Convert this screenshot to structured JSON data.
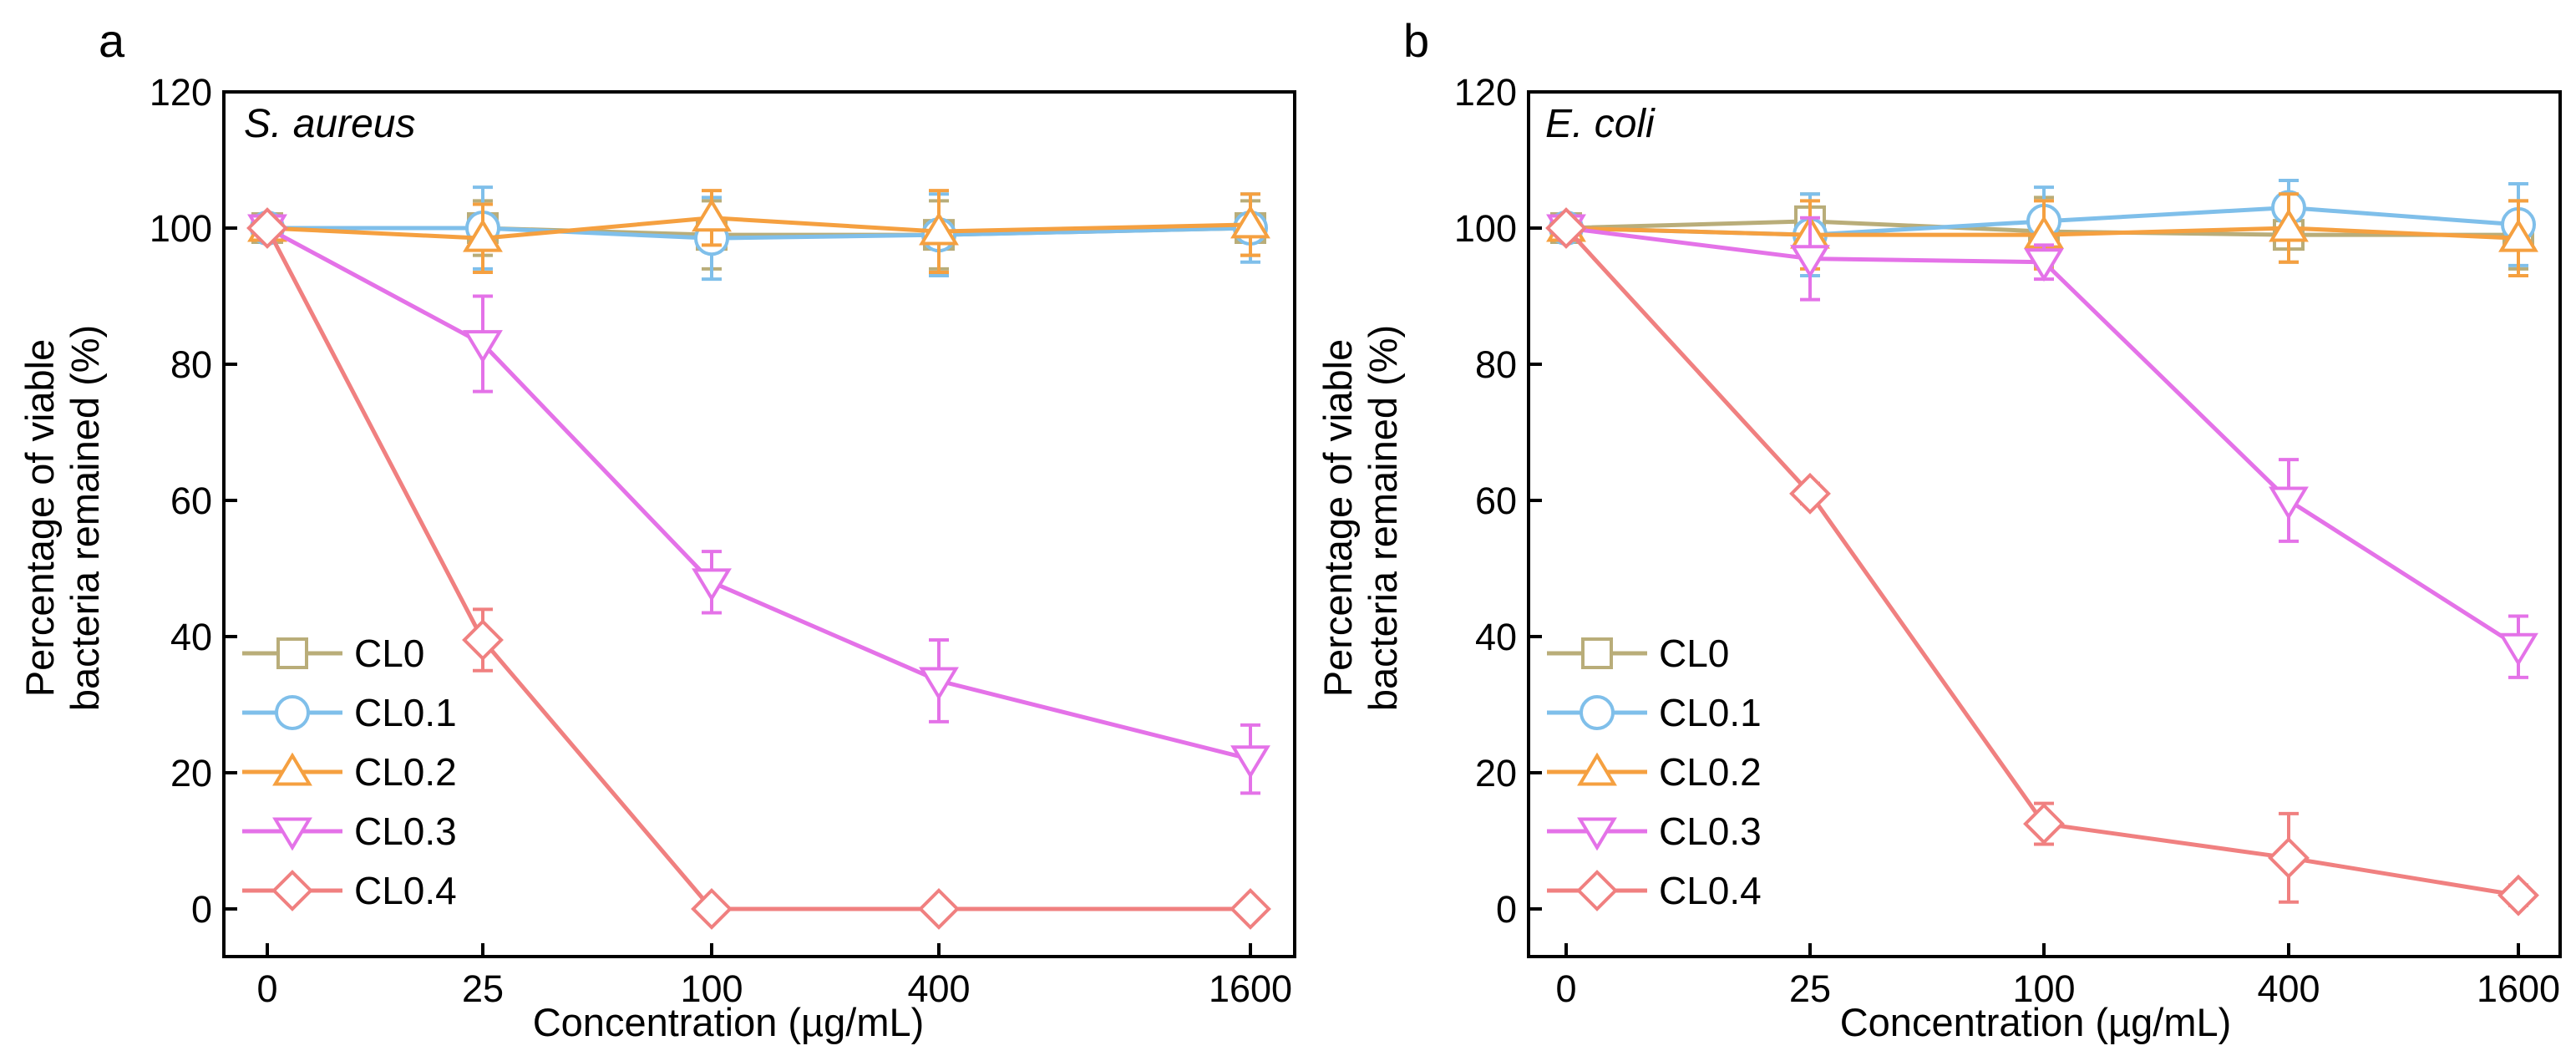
{
  "chart_data": [
    {
      "type": "line",
      "panel_label": "a",
      "title": "S. aureus",
      "xlabel": "Concentration (µg/mL)",
      "ylabel_lines": [
        "Percentage of viable",
        "bacteria remained (%)"
      ],
      "categories": [
        "0",
        "25",
        "100",
        "400",
        "1600"
      ],
      "ylim": [
        -7,
        120
      ],
      "yticks": [
        0,
        20,
        40,
        60,
        80,
        100,
        120
      ],
      "legend_position": "lower-left",
      "series": [
        {
          "name": "CL0",
          "marker": "square",
          "color": "#b9ad79",
          "values": [
            100,
            100,
            99,
            99,
            100
          ],
          "errors": [
            1,
            4,
            5,
            5,
            4
          ]
        },
        {
          "name": "CL0.1",
          "marker": "circle",
          "color": "#7fbfea",
          "values": [
            100,
            100,
            98.5,
            99,
            100
          ],
          "errors": [
            1,
            6,
            6,
            6,
            5
          ]
        },
        {
          "name": "CL0.2",
          "marker": "triangle-up",
          "color": "#f5a040",
          "values": [
            100,
            98.5,
            101.5,
            99.5,
            100.5
          ],
          "errors": [
            1,
            5,
            4,
            6,
            4.5
          ]
        },
        {
          "name": "CL0.3",
          "marker": "triangle-down",
          "color": "#e472e8",
          "values": [
            100,
            83,
            48,
            33.5,
            22
          ],
          "errors": [
            1,
            7,
            4.5,
            6,
            5
          ]
        },
        {
          "name": "CL0.4",
          "marker": "diamond",
          "color": "#f08080",
          "values": [
            100,
            39.5,
            0,
            0,
            0
          ],
          "errors": [
            1,
            4.5,
            0.5,
            0.5,
            0.5
          ]
        }
      ]
    },
    {
      "type": "line",
      "panel_label": "b",
      "title": "E. coli",
      "xlabel": "Concentration (µg/mL)",
      "ylabel_lines": [
        "Percentage of viable",
        "bacteria remained (%)"
      ],
      "categories": [
        "0",
        "25",
        "100",
        "400",
        "1600"
      ],
      "ylim": [
        -7,
        120
      ],
      "yticks": [
        0,
        20,
        40,
        60,
        80,
        100,
        120
      ],
      "legend_position": "lower-left",
      "series": [
        {
          "name": "CL0",
          "marker": "square",
          "color": "#b9ad79",
          "values": [
            100,
            101,
            99.5,
            99,
            99
          ],
          "errors": [
            1,
            4,
            5,
            4,
            5
          ]
        },
        {
          "name": "CL0.1",
          "marker": "circle",
          "color": "#7fbfea",
          "values": [
            100,
            99,
            101,
            103,
            100.5
          ],
          "errors": [
            1,
            6,
            5,
            4,
            6
          ]
        },
        {
          "name": "CL0.2",
          "marker": "triangle-up",
          "color": "#f5a040",
          "values": [
            100,
            99,
            99,
            100,
            98.5
          ],
          "errors": [
            1,
            5,
            5,
            5,
            5.5
          ]
        },
        {
          "name": "CL0.3",
          "marker": "triangle-down",
          "color": "#e472e8",
          "values": [
            100,
            95.5,
            95,
            60,
            38.5
          ],
          "errors": [
            1,
            6,
            2.5,
            6,
            4.5
          ]
        },
        {
          "name": "CL0.4",
          "marker": "diamond",
          "color": "#f08080",
          "values": [
            100,
            61,
            12.5,
            7.5,
            2
          ],
          "errors": [
            1,
            1.5,
            3,
            6.5,
            1.5
          ]
        }
      ]
    }
  ]
}
